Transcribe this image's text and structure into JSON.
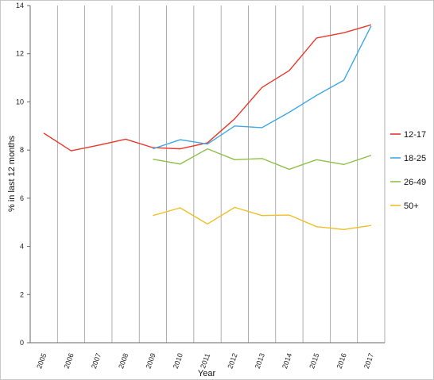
{
  "chart_data": {
    "type": "line",
    "title": "",
    "xlabel": "Year",
    "ylabel": "% in last 12 months",
    "ylim": [
      0,
      14
    ],
    "yticks": [
      0,
      2,
      4,
      6,
      8,
      10,
      12,
      14
    ],
    "grid": "vertical",
    "legend": "right",
    "categories": [
      "2005",
      "2006",
      "2007",
      "2008",
      "2009",
      "2010",
      "2011",
      "2012",
      "2013",
      "2014",
      "2015",
      "2016",
      "2017"
    ],
    "series": [
      {
        "name": "12-17",
        "color": "#e8392b",
        "values": [
          8.7,
          7.97,
          8.2,
          8.45,
          8.1,
          8.05,
          8.3,
          9.3,
          10.6,
          11.3,
          12.65,
          12.87,
          13.2
        ]
      },
      {
        "name": "18-25",
        "color": "#3ea8e5",
        "values": [
          null,
          null,
          null,
          null,
          8.05,
          8.43,
          8.25,
          9.0,
          8.93,
          9.57,
          10.27,
          10.9,
          13.15
        ]
      },
      {
        "name": "26-49",
        "color": "#8fc14a",
        "values": [
          null,
          null,
          null,
          null,
          7.62,
          7.42,
          8.05,
          7.6,
          7.65,
          7.2,
          7.6,
          7.4,
          7.78
        ]
      },
      {
        "name": "50+",
        "color": "#f0bf26",
        "values": [
          null,
          null,
          null,
          null,
          5.28,
          5.6,
          4.93,
          5.62,
          5.28,
          5.3,
          4.82,
          4.7,
          4.87
        ]
      }
    ]
  }
}
